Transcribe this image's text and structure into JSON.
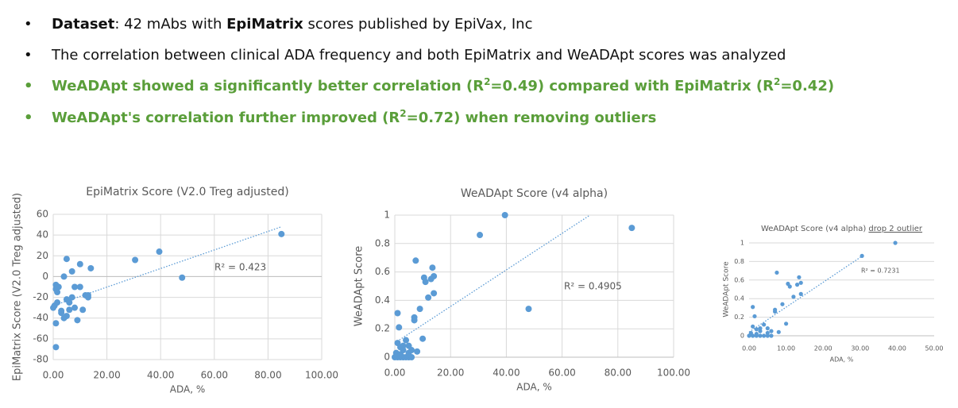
{
  "bullets": [
    [
      "Dataset",
      ": 42 mAbs with ",
      "EpiMatrix",
      " scores published by EpiVax, Inc"
    ],
    [
      "The correlation between clinical ADA frequency and both EpiMatrix and WeADApt scores was analyzed"
    ],
    [
      "WeADApt showed a significantly better correlation (R",
      "2",
      "=0.49) compared with EpiMatrix (R",
      "2",
      "=0.42)"
    ],
    [
      "WeADApt's correlation further improved (R",
      "2",
      "=0.72) when removing outliers"
    ]
  ],
  "chart_data": [
    {
      "type": "scatter",
      "title": "EpiMatrix Score (V2.0 Treg adjusted)",
      "x_label": "ADA, %",
      "y_label": "EpiMatrix Score (V2.0 Treg adjusted)",
      "annotation": "R² = 0.423",
      "color": "#5b9bd5",
      "grid": true,
      "xlim": [
        0,
        100
      ],
      "xticks": [
        {
          "value": 0,
          "label": "0.00"
        },
        {
          "value": 20,
          "label": "20.00"
        },
        {
          "value": 40,
          "label": "40.00"
        },
        {
          "value": 60,
          "label": "60.00"
        },
        {
          "value": 80,
          "label": "80.00"
        },
        {
          "value": 100,
          "label": "100.00"
        }
      ],
      "ylim": [
        -80,
        60
      ],
      "yticks": [
        -80,
        -60,
        -40,
        -20,
        0,
        20,
        40,
        60
      ],
      "x": [
        0,
        0.5,
        1,
        1,
        1,
        1.5,
        1.5,
        1,
        2,
        3,
        3,
        4,
        4,
        5,
        5,
        5,
        6,
        6,
        7,
        7,
        8,
        8,
        9,
        10,
        10,
        11,
        12,
        13,
        13,
        14,
        30.5,
        39.5,
        48,
        85
      ],
      "values": [
        -30,
        -28,
        -45,
        -8,
        -12,
        -15,
        -25,
        -68,
        -10,
        -33,
        -35,
        -40,
        0,
        -38,
        -22,
        17,
        -32,
        -25,
        -20,
        5,
        -10,
        -30,
        -42,
        12,
        -10,
        -32,
        -18,
        -20,
        -18,
        8,
        16,
        24,
        -1,
        41
      ],
      "trendline": {
        "x": [
          0,
          85
        ],
        "y": [
          -28,
          48
        ]
      }
    },
    {
      "type": "scatter",
      "title": "WeADApt Score (v4 alpha)",
      "x_label": "ADA, %",
      "y_label": "WeADApt Score",
      "annotation": "R² = 0.4905",
      "color": "#5b9bd5",
      "grid": true,
      "xlim": [
        0,
        100
      ],
      "xticks": [
        {
          "value": 0,
          "label": "0.00"
        },
        {
          "value": 20,
          "label": "20.00"
        },
        {
          "value": 40,
          "label": "40.00"
        },
        {
          "value": 60,
          "label": "60.00"
        },
        {
          "value": 80,
          "label": "80.00"
        },
        {
          "value": 100,
          "label": "100.00"
        }
      ],
      "ylim": [
        0,
        1
      ],
      "yticks": [
        0,
        0.2,
        0.4,
        0.6,
        0.8,
        1
      ],
      "x": [
        0,
        1,
        2,
        3,
        4,
        5,
        6,
        0.5,
        2,
        3,
        1,
        1.5,
        1,
        2,
        3,
        4,
        5,
        5,
        6,
        7,
        7,
        7.5,
        8,
        9,
        10,
        10.5,
        11,
        12,
        13,
        13.5,
        14,
        14,
        30.5,
        39.5,
        48,
        85
      ],
      "values": [
        0,
        0,
        0,
        0,
        0,
        0,
        0,
        0.03,
        0.02,
        0.08,
        0.31,
        0.21,
        0.1,
        0.07,
        0.05,
        0.12,
        0.08,
        0.03,
        0.05,
        0.28,
        0.26,
        0.68,
        0.04,
        0.34,
        0.13,
        0.56,
        0.53,
        0.42,
        0.55,
        0.63,
        0.45,
        0.57,
        0.86,
        1,
        0.34,
        0.91
      ],
      "trendline": {
        "x": [
          0,
          70
        ],
        "y": [
          0.1,
          1
        ]
      }
    },
    {
      "type": "scatter",
      "title": "WeADApt Score (v4 alpha) ",
      "title_highlight": "drop 2 outlier",
      "x_label": "ADA, %",
      "y_label": "WeADApt Score",
      "annotation": "R² = 0.7231",
      "color": "#5b9bd5",
      "grid": true,
      "xlim": [
        0,
        50
      ],
      "xticks": [
        {
          "value": 0,
          "label": "0.00"
        },
        {
          "value": 10,
          "label": "10.00"
        },
        {
          "value": 20,
          "label": "20.00"
        },
        {
          "value": 30,
          "label": "30.00"
        },
        {
          "value": 40,
          "label": "40.00"
        },
        {
          "value": 50,
          "label": "50.00"
        }
      ],
      "ylim": [
        0,
        1
      ],
      "yticks": [
        0,
        0.2,
        0.4,
        0.6,
        0.8,
        1
      ],
      "x": [
        0,
        1,
        2,
        3,
        4,
        5,
        6,
        0.5,
        2,
        3,
        1,
        1.5,
        1,
        2,
        3,
        4,
        5,
        5,
        6,
        7,
        7,
        7.5,
        8,
        9,
        10,
        10.5,
        11,
        12,
        13,
        13.5,
        14,
        14,
        30.5,
        39.5
      ],
      "values": [
        0,
        0,
        0,
        0,
        0,
        0,
        0,
        0.03,
        0.02,
        0.08,
        0.31,
        0.21,
        0.1,
        0.07,
        0.05,
        0.12,
        0.08,
        0.03,
        0.05,
        0.28,
        0.26,
        0.68,
        0.04,
        0.34,
        0.13,
        0.56,
        0.53,
        0.42,
        0.55,
        0.63,
        0.45,
        0.57,
        0.86,
        1
      ],
      "trendline": {
        "x": [
          0,
          31
        ],
        "y": [
          0.04,
          0.87
        ]
      }
    }
  ]
}
